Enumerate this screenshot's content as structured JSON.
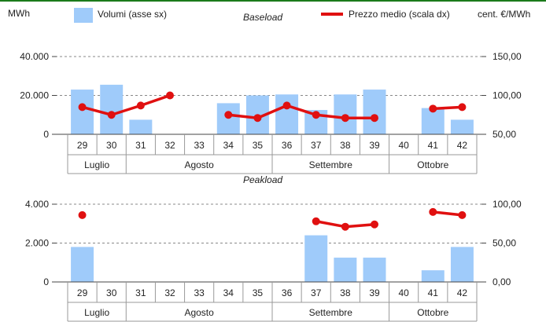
{
  "header": {
    "left_unit": "MWh",
    "right_unit": "cent. €/MWh",
    "legend_bar_label": "Volumi (asse sx)",
    "legend_line_label": "Prezzo medio (scala dx)"
  },
  "colors": {
    "bar": "#9fcbfa",
    "line": "#e01010",
    "grid": "#888888",
    "axis": "#999999"
  },
  "chart_data": [
    {
      "type": "bar",
      "title": "Baseload",
      "x_label": "",
      "categories": [
        "29",
        "30",
        "31",
        "32",
        "33",
        "34",
        "35",
        "36",
        "37",
        "38",
        "39",
        "40",
        "41",
        "42"
      ],
      "month_groups": [
        {
          "label": "Luglio",
          "weeks": [
            "29",
            "30"
          ]
        },
        {
          "label": "Agosto",
          "weeks": [
            "31",
            "32",
            "33",
            "34",
            "35"
          ]
        },
        {
          "label": "Settembre",
          "weeks": [
            "36",
            "37",
            "38",
            "39"
          ]
        },
        {
          "label": "Ottobre",
          "weeks": [
            "40",
            "41",
            "42"
          ]
        }
      ],
      "series": [
        {
          "name": "Volumi (asse sx)",
          "axis": "left",
          "kind": "bar",
          "values": [
            23000,
            25500,
            7500,
            0,
            0,
            16000,
            20000,
            20500,
            12500,
            20500,
            23000,
            0,
            13500,
            7500
          ]
        },
        {
          "name": "Prezzo medio (scala dx)",
          "axis": "right",
          "kind": "line",
          "values": [
            85,
            75,
            87,
            100,
            null,
            75,
            71,
            87,
            75,
            71,
            71,
            null,
            83,
            85
          ]
        }
      ],
      "y_left": {
        "min": 0,
        "max": 40000,
        "ticks": [
          0,
          20000,
          40000
        ],
        "tick_labels": [
          "0",
          "20.000",
          "40.000"
        ]
      },
      "y_right": {
        "min": 50,
        "max": 150,
        "ticks": [
          50,
          100,
          150
        ],
        "tick_labels": [
          "50,00",
          "100,00",
          "150,00"
        ]
      },
      "grid": "dashed-horizontal"
    },
    {
      "type": "bar",
      "title": "Peakload",
      "x_label": "",
      "categories": [
        "29",
        "30",
        "31",
        "32",
        "33",
        "34",
        "35",
        "36",
        "37",
        "38",
        "39",
        "40",
        "41",
        "42"
      ],
      "month_groups": [
        {
          "label": "Luglio",
          "weeks": [
            "29",
            "30"
          ]
        },
        {
          "label": "Agosto",
          "weeks": [
            "31",
            "32",
            "33",
            "34",
            "35"
          ]
        },
        {
          "label": "Settembre",
          "weeks": [
            "36",
            "37",
            "38",
            "39"
          ]
        },
        {
          "label": "Ottobre",
          "weeks": [
            "40",
            "41",
            "42"
          ]
        }
      ],
      "series": [
        {
          "name": "Volumi (asse sx)",
          "axis": "left",
          "kind": "bar",
          "values": [
            1800,
            0,
            0,
            0,
            0,
            0,
            0,
            0,
            2400,
            1250,
            1250,
            0,
            600,
            1800
          ]
        },
        {
          "name": "Prezzo medio (scala dx)",
          "axis": "right",
          "kind": "line",
          "values": [
            86,
            null,
            null,
            null,
            null,
            null,
            null,
            null,
            78,
            71,
            74,
            null,
            90,
            86
          ]
        }
      ],
      "y_left": {
        "min": 0,
        "max": 4000,
        "ticks": [
          0,
          2000,
          4000
        ],
        "tick_labels": [
          "0",
          "2.000",
          "4.000"
        ]
      },
      "y_right": {
        "min": 0,
        "max": 100,
        "ticks": [
          0,
          50,
          100
        ],
        "tick_labels": [
          "0,00",
          "50,00",
          "100,00"
        ]
      },
      "grid": "dashed-horizontal"
    }
  ]
}
